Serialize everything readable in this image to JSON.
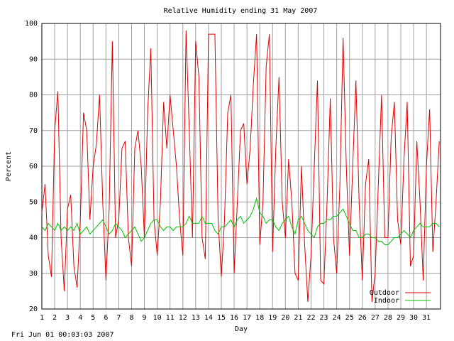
{
  "chart_data": {
    "type": "line",
    "title": "Relative Humidity ending 31 May 2007",
    "xlabel": "Day",
    "ylabel": "Percent",
    "footer": "Fri Jun 01 00:03:03 2007",
    "x": [
      1,
      1.25,
      1.5,
      1.75,
      2,
      2.25,
      2.5,
      2.75,
      3,
      3.25,
      3.5,
      3.75,
      4,
      4.25,
      4.5,
      4.75,
      5,
      5.25,
      5.5,
      5.75,
      6,
      6.25,
      6.5,
      6.75,
      7,
      7.25,
      7.5,
      7.75,
      8,
      8.25,
      8.5,
      8.75,
      9,
      9.25,
      9.5,
      9.75,
      10,
      10.25,
      10.5,
      10.75,
      11,
      11.25,
      11.5,
      11.75,
      12,
      12.25,
      12.5,
      12.75,
      13,
      13.25,
      13.5,
      13.75,
      14,
      14.25,
      14.5,
      14.75,
      15,
      15.25,
      15.5,
      15.75,
      16,
      16.25,
      16.5,
      16.75,
      17,
      17.25,
      17.5,
      17.75,
      18,
      18.25,
      18.5,
      18.75,
      19,
      19.25,
      19.5,
      19.75,
      20,
      20.25,
      20.5,
      20.75,
      21,
      21.25,
      21.5,
      21.75,
      22,
      22.25,
      22.5,
      22.75,
      23,
      23.25,
      23.5,
      23.75,
      24,
      24.25,
      24.5,
      24.75,
      25,
      25.25,
      25.5,
      25.75,
      26,
      26.25,
      26.5,
      26.75,
      27,
      27.25,
      27.5,
      27.75,
      28,
      28.25,
      28.5,
      28.75,
      29,
      29.25,
      29.5,
      29.75,
      30,
      30.25,
      30.5,
      30.75,
      31,
      31.25,
      31.5,
      31.75,
      32
    ],
    "series": [
      {
        "name": "Outdoor",
        "color": "#e00000",
        "values": [
          47,
          55,
          35,
          29,
          70,
          81,
          40,
          25,
          48,
          52,
          32,
          26,
          45,
          75,
          70,
          45,
          60,
          66,
          80,
          50,
          28,
          48,
          95,
          40,
          45,
          65,
          67,
          40,
          32,
          65,
          70,
          60,
          40,
          75,
          93,
          45,
          35,
          50,
          78,
          65,
          80,
          70,
          60,
          45,
          35,
          98,
          70,
          40,
          95,
          85,
          40,
          34,
          97,
          97,
          97,
          45,
          29,
          45,
          75,
          80,
          30,
          50,
          70,
          72,
          55,
          65,
          83,
          97,
          38,
          50,
          88,
          97,
          36,
          65,
          85,
          50,
          40,
          62,
          50,
          30,
          28,
          60,
          38,
          22,
          35,
          60,
          84,
          28,
          27,
          50,
          79,
          40,
          30,
          55,
          96,
          60,
          35,
          60,
          84,
          50,
          28,
          55,
          62,
          22,
          30,
          55,
          80,
          40,
          40,
          68,
          78,
          45,
          38,
          62,
          78,
          32,
          35,
          67,
          50,
          28,
          60,
          76,
          36,
          50,
          67
        ]
      },
      {
        "name": "Indoor",
        "color": "#00c000",
        "values": [
          43,
          42,
          44,
          43,
          42,
          44,
          42,
          43,
          42,
          43,
          42,
          44,
          41,
          42,
          43,
          41,
          42,
          43,
          44,
          45,
          43,
          41,
          42,
          44,
          43,
          42,
          40,
          41,
          42,
          43,
          41,
          39,
          40,
          42,
          44,
          45,
          45,
          43,
          42,
          43,
          43,
          42,
          43,
          43,
          43,
          44,
          46,
          44,
          44,
          44,
          46,
          44,
          44,
          44,
          42,
          41,
          43,
          43,
          44,
          45,
          43,
          45,
          46,
          44,
          45,
          46,
          48,
          51,
          47,
          46,
          44,
          45,
          45,
          43,
          42,
          44,
          45,
          46,
          43,
          41,
          45,
          46,
          44,
          42,
          41,
          40,
          43,
          44,
          44,
          45,
          45,
          46,
          46,
          47,
          48,
          46,
          44,
          42,
          42,
          40,
          40,
          41,
          41,
          40,
          40,
          39,
          39,
          38,
          38,
          39,
          40,
          40,
          41,
          42,
          41,
          40,
          42,
          43,
          44,
          43,
          43,
          43,
          44,
          44,
          43
        ]
      }
    ],
    "xlim": [
      1,
      32.1
    ],
    "ylim": [
      20,
      100
    ],
    "xticks": [
      1,
      2,
      3,
      4,
      5,
      6,
      7,
      8,
      9,
      10,
      11,
      12,
      13,
      14,
      15,
      16,
      17,
      18,
      19,
      20,
      21,
      22,
      23,
      24,
      25,
      26,
      27,
      28,
      29,
      30,
      31
    ],
    "yticks": [
      20,
      30,
      40,
      50,
      60,
      70,
      80,
      90,
      100
    ],
    "grid": true,
    "legend": "bottom-right"
  }
}
